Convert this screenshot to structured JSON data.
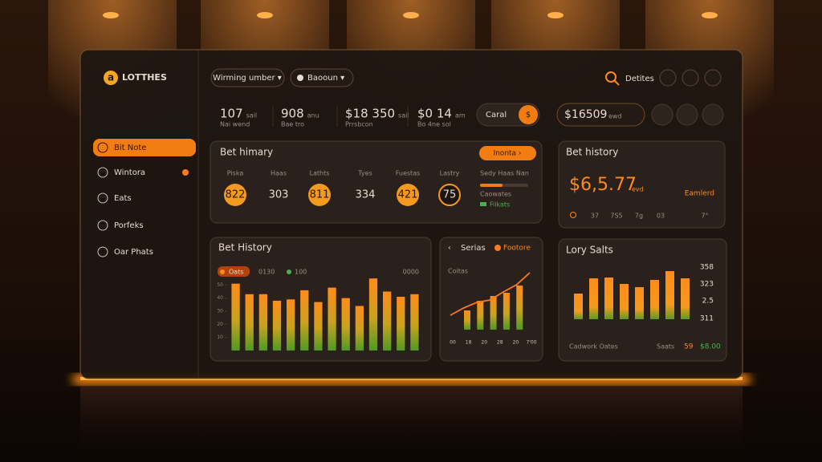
{
  "sidebar": {
    "logo_icon": "a",
    "logo": "LOTTHES",
    "nav": [
      "Bit Note",
      "Wintora",
      "Eats",
      "Porfeks",
      "Oar Phats"
    ]
  },
  "topbar": {
    "filters": [
      "Wirming umber ▾",
      "Baooun ▾"
    ],
    "actions_label": "Detites"
  },
  "stats": [
    {
      "value": "107",
      "unit": "sail",
      "label": "Nai wend"
    },
    {
      "value": "908",
      "unit": "anu",
      "label": "Bae tro"
    },
    {
      "value": "$18 350",
      "unit": "sail",
      "label": "Prrsbcon"
    },
    {
      "value": "$0 14",
      "unit": "am",
      "label": "Bo 4ne sol"
    }
  ],
  "balance_chip": {
    "label": "Caral",
    "icon": "$"
  },
  "wallet": {
    "amount": "$16509",
    "unit": "ewd"
  },
  "summary_card": {
    "title": "Bet himary",
    "button": "Inonta ›",
    "columns": [
      {
        "label": "Piska",
        "value": "822",
        "style": "filled"
      },
      {
        "label": "Haas",
        "value": "303",
        "style": "plain"
      },
      {
        "label": "Lathts",
        "value": "811",
        "style": "filled"
      },
      {
        "label": "Tyes",
        "value": "334",
        "style": "plain"
      },
      {
        "label": "Fuestas",
        "value": "421",
        "style": "filled"
      },
      {
        "label": "Lastry",
        "value": "75",
        "style": "outline"
      }
    ],
    "side_title": "Sedy Haas Nan",
    "side_caption": "Caowates",
    "side_status": "Fiikats"
  },
  "history_card": {
    "title": "Bet history",
    "amount": "$6,5.77",
    "unit": "evd",
    "status": "Eamlerd",
    "footer": [
      "37",
      "7S5",
      "7g",
      "03",
      "7°"
    ]
  },
  "bet_chart": {
    "title": "Bet History",
    "legend": [
      "Oats",
      "0130",
      "100",
      "0000"
    ],
    "ylim": [
      0,
      60
    ],
    "yticks": [
      10,
      20,
      30,
      40,
      50
    ],
    "values": [
      51,
      43,
      43,
      38,
      39,
      46,
      37,
      48,
      40,
      34,
      55,
      45,
      41,
      43
    ]
  },
  "series_chart": {
    "title": "Serias",
    "legend": "Footore",
    "caption": "Coitas",
    "ylim": [
      0,
      80
    ],
    "xlabels": [
      "00",
      "18",
      "20",
      "28",
      "20",
      "7'00"
    ],
    "bars": [
      24,
      36,
      42,
      46,
      55
    ],
    "line": [
      18,
      27,
      34,
      37,
      47,
      56,
      71
    ]
  },
  "lory_chart": {
    "title": "Lory Salts",
    "ylim": [
      0,
      60
    ],
    "side_labels": [
      "358",
      "323",
      "2.5",
      "311"
    ],
    "values": [
      32,
      51,
      52,
      44,
      40,
      49,
      60,
      51
    ],
    "footer_left": "Cadwork Oates",
    "footer_mid": "Saats",
    "footer_values": [
      "59",
      "$8.00"
    ]
  }
}
